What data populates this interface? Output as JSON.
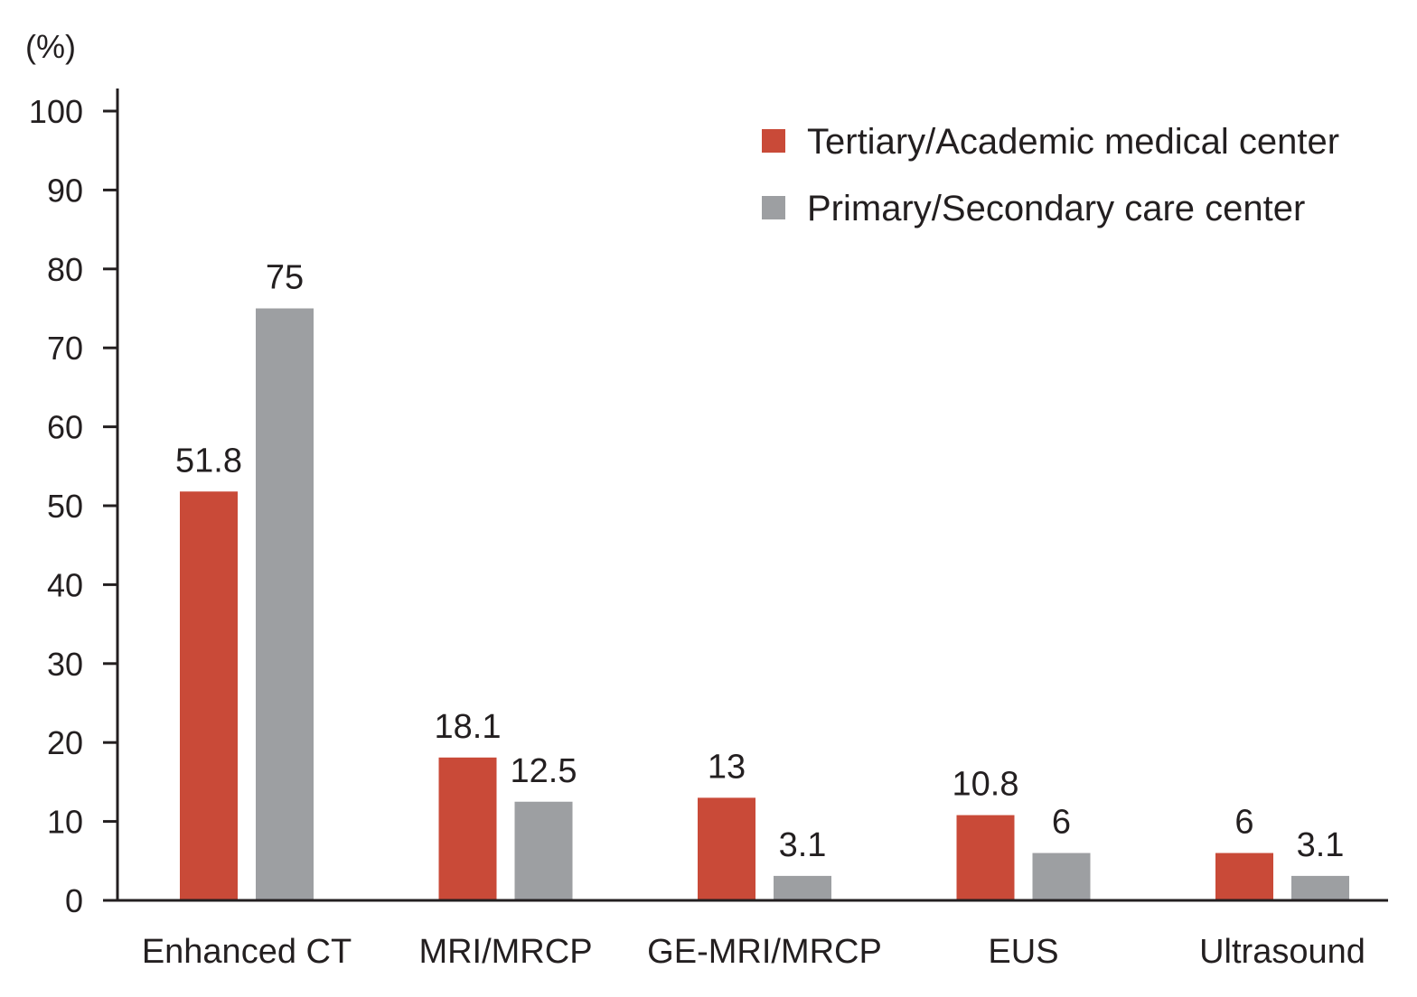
{
  "chart_data": {
    "type": "bar",
    "unit_label": "(%)",
    "categories": [
      "Enhanced CT",
      "MRI/MRCP",
      "GE-MRI/MRCP",
      "EUS",
      "Ultrasound"
    ],
    "series": [
      {
        "name": "Tertiary/Academic medical center",
        "color": "#c94a38",
        "values": [
          51.8,
          18.1,
          13,
          10.8,
          6
        ],
        "labels": [
          "51.8",
          "18.1",
          "13",
          "10.8",
          "6"
        ]
      },
      {
        "name": "Primary/Secondary care center",
        "color": "#9d9fa2",
        "values": [
          75,
          12.5,
          3.1,
          6,
          3.1
        ],
        "labels": [
          "75",
          "12.5",
          "3.1",
          "6",
          "3.1"
        ]
      }
    ],
    "ylim": [
      0,
      100
    ],
    "yticks": [
      0,
      10,
      20,
      30,
      40,
      50,
      60,
      70,
      80,
      90,
      100
    ],
    "legend_position": "top-right",
    "grid": false
  }
}
